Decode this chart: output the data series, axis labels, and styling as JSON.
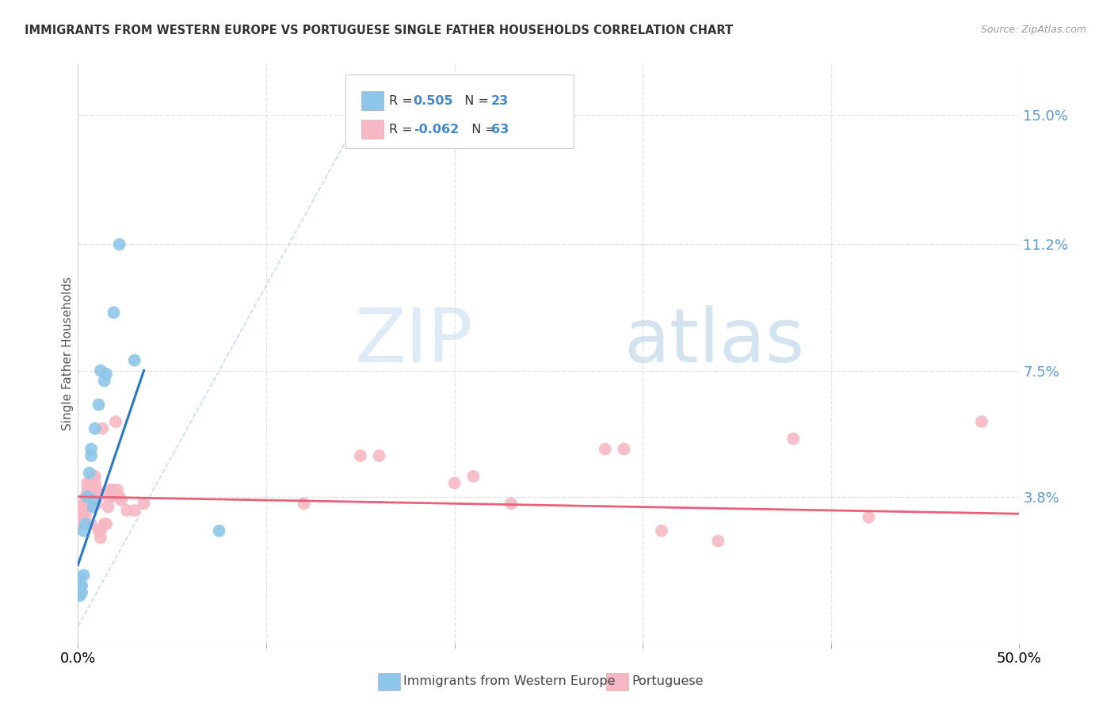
{
  "title": "IMMIGRANTS FROM WESTERN EUROPE VS PORTUGUESE SINGLE FATHER HOUSEHOLDS CORRELATION CHART",
  "source": "Source: ZipAtlas.com",
  "ylabel": "Single Father Households",
  "ytick_labels": [
    "15.0%",
    "11.2%",
    "7.5%",
    "3.8%"
  ],
  "ytick_values": [
    0.15,
    0.112,
    0.075,
    0.038
  ],
  "xlim": [
    0.0,
    0.5
  ],
  "ylim": [
    -0.005,
    0.165
  ],
  "color_blue": "#8ec6e8",
  "color_pink": "#f5b8c4",
  "color_blue_line": "#2878c8",
  "color_pink_line": "#e8607a",
  "color_diag": "#b8d4ee",
  "blue_scatter": [
    [
      0.001,
      0.009
    ],
    [
      0.001,
      0.012
    ],
    [
      0.001,
      0.014
    ],
    [
      0.002,
      0.01
    ],
    [
      0.002,
      0.012
    ],
    [
      0.003,
      0.015
    ],
    [
      0.003,
      0.028
    ],
    [
      0.004,
      0.03
    ],
    [
      0.005,
      0.038
    ],
    [
      0.006,
      0.045
    ],
    [
      0.007,
      0.05
    ],
    [
      0.007,
      0.052
    ],
    [
      0.008,
      0.035
    ],
    [
      0.008,
      0.037
    ],
    [
      0.009,
      0.058
    ],
    [
      0.011,
      0.065
    ],
    [
      0.012,
      0.075
    ],
    [
      0.014,
      0.072
    ],
    [
      0.015,
      0.074
    ],
    [
      0.019,
      0.092
    ],
    [
      0.022,
      0.112
    ],
    [
      0.03,
      0.078
    ],
    [
      0.075,
      0.028
    ]
  ],
  "pink_scatter": [
    [
      0.001,
      0.035
    ],
    [
      0.001,
      0.03
    ],
    [
      0.001,
      0.033
    ],
    [
      0.002,
      0.032
    ],
    [
      0.002,
      0.034
    ],
    [
      0.002,
      0.035
    ],
    [
      0.003,
      0.033
    ],
    [
      0.003,
      0.036
    ],
    [
      0.003,
      0.03
    ],
    [
      0.004,
      0.033
    ],
    [
      0.004,
      0.036
    ],
    [
      0.004,
      0.038
    ],
    [
      0.005,
      0.038
    ],
    [
      0.005,
      0.036
    ],
    [
      0.005,
      0.04
    ],
    [
      0.005,
      0.042
    ],
    [
      0.006,
      0.035
    ],
    [
      0.006,
      0.039
    ],
    [
      0.006,
      0.04
    ],
    [
      0.007,
      0.04
    ],
    [
      0.007,
      0.042
    ],
    [
      0.007,
      0.037
    ],
    [
      0.007,
      0.03
    ],
    [
      0.008,
      0.036
    ],
    [
      0.008,
      0.04
    ],
    [
      0.008,
      0.044
    ],
    [
      0.009,
      0.038
    ],
    [
      0.009,
      0.04
    ],
    [
      0.009,
      0.042
    ],
    [
      0.009,
      0.044
    ],
    [
      0.01,
      0.036
    ],
    [
      0.01,
      0.04
    ],
    [
      0.011,
      0.028
    ],
    [
      0.012,
      0.026
    ],
    [
      0.012,
      0.028
    ],
    [
      0.013,
      0.058
    ],
    [
      0.014,
      0.03
    ],
    [
      0.015,
      0.03
    ],
    [
      0.016,
      0.035
    ],
    [
      0.016,
      0.038
    ],
    [
      0.017,
      0.04
    ],
    [
      0.018,
      0.038
    ],
    [
      0.018,
      0.04
    ],
    [
      0.02,
      0.06
    ],
    [
      0.021,
      0.04
    ],
    [
      0.021,
      0.038
    ],
    [
      0.022,
      0.038
    ],
    [
      0.023,
      0.037
    ],
    [
      0.026,
      0.034
    ],
    [
      0.03,
      0.034
    ],
    [
      0.035,
      0.036
    ],
    [
      0.12,
      0.036
    ],
    [
      0.15,
      0.05
    ],
    [
      0.16,
      0.05
    ],
    [
      0.2,
      0.042
    ],
    [
      0.21,
      0.044
    ],
    [
      0.23,
      0.036
    ],
    [
      0.28,
      0.052
    ],
    [
      0.29,
      0.052
    ],
    [
      0.31,
      0.028
    ],
    [
      0.34,
      0.025
    ],
    [
      0.38,
      0.055
    ],
    [
      0.42,
      0.032
    ],
    [
      0.48,
      0.06
    ]
  ],
  "watermark_zip": "ZIP",
  "watermark_atlas": "atlas",
  "background_color": "#ffffff",
  "grid_color": "#dddddd"
}
